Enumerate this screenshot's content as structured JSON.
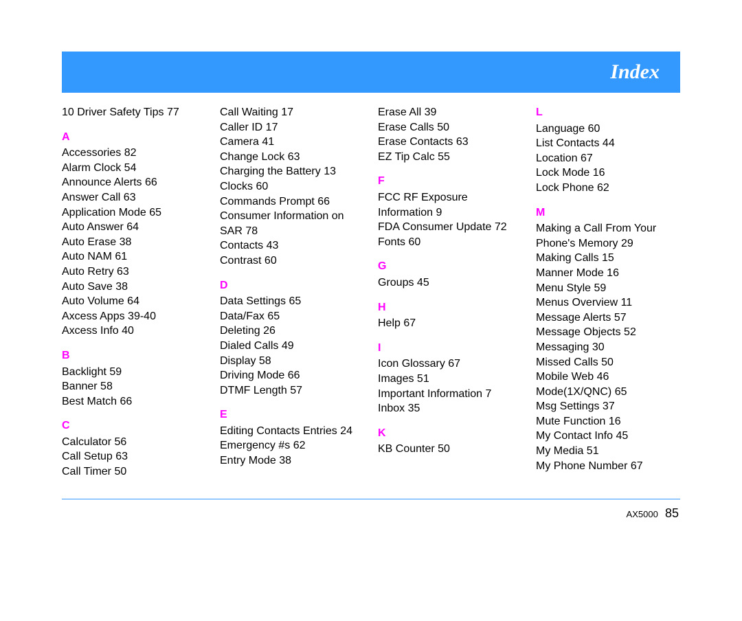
{
  "header": {
    "title": "Index"
  },
  "colors": {
    "header_bg": "#3399ff",
    "header_text": "#ffffff",
    "letter": "#ff00ff",
    "rule": "#3399ff",
    "text": "#000000"
  },
  "columns": [
    [
      {
        "type": "entry",
        "text": "10 Driver Safety Tips 77"
      },
      {
        "type": "letter",
        "text": "A"
      },
      {
        "type": "entry",
        "text": "Accessories 82"
      },
      {
        "type": "entry",
        "text": "Alarm Clock 54"
      },
      {
        "type": "entry",
        "text": "Announce Alerts 66"
      },
      {
        "type": "entry",
        "text": "Answer Call 63"
      },
      {
        "type": "entry",
        "text": "Application Mode 65"
      },
      {
        "type": "entry",
        "text": "Auto Answer 64"
      },
      {
        "type": "entry",
        "text": "Auto Erase 38"
      },
      {
        "type": "entry",
        "text": "Auto NAM 61"
      },
      {
        "type": "entry",
        "text": "Auto Retry 63"
      },
      {
        "type": "entry",
        "text": "Auto Save 38"
      },
      {
        "type": "entry",
        "text": "Auto Volume 64"
      },
      {
        "type": "entry",
        "text": "Axcess Apps 39-40"
      },
      {
        "type": "entry",
        "text": "Axcess Info 40"
      },
      {
        "type": "letter",
        "text": "B"
      },
      {
        "type": "entry",
        "text": "Backlight 59"
      },
      {
        "type": "entry",
        "text": "Banner 58"
      },
      {
        "type": "entry",
        "text": "Best Match 66"
      },
      {
        "type": "letter",
        "text": "C"
      },
      {
        "type": "entry",
        "text": "Calculator 56"
      },
      {
        "type": "entry",
        "text": "Call Setup 63"
      },
      {
        "type": "entry",
        "text": "Call Timer 50"
      }
    ],
    [
      {
        "type": "entry",
        "text": "Call Waiting 17"
      },
      {
        "type": "entry",
        "text": "Caller ID 17"
      },
      {
        "type": "entry",
        "text": "Camera 41"
      },
      {
        "type": "entry",
        "text": "Change Lock 63"
      },
      {
        "type": "entry",
        "text": "Charging the Battery 13"
      },
      {
        "type": "entry",
        "text": "Clocks 60"
      },
      {
        "type": "entry",
        "text": "Commands Prompt 66"
      },
      {
        "type": "entry",
        "text": "Consumer Information on SAR 78"
      },
      {
        "type": "entry",
        "text": "Contacts 43"
      },
      {
        "type": "entry",
        "text": "Contrast 60"
      },
      {
        "type": "letter",
        "text": "D"
      },
      {
        "type": "entry",
        "text": "Data Settings 65"
      },
      {
        "type": "entry",
        "text": "Data/Fax 65"
      },
      {
        "type": "entry",
        "text": "Deleting 26"
      },
      {
        "type": "entry",
        "text": "Dialed Calls 49"
      },
      {
        "type": "entry",
        "text": "Display 58"
      },
      {
        "type": "entry",
        "text": "Driving Mode 66"
      },
      {
        "type": "entry",
        "text": "DTMF Length 57"
      },
      {
        "type": "letter",
        "text": "E"
      },
      {
        "type": "entry",
        "text": "Editing Contacts Entries 24"
      },
      {
        "type": "entry",
        "text": "Emergency #s 62"
      },
      {
        "type": "entry",
        "text": "Entry Mode 38"
      }
    ],
    [
      {
        "type": "entry",
        "text": "Erase All 39"
      },
      {
        "type": "entry",
        "text": "Erase Calls 50"
      },
      {
        "type": "entry",
        "text": "Erase Contacts 63"
      },
      {
        "type": "entry",
        "text": "EZ Tip Calc 55"
      },
      {
        "type": "letter",
        "text": "F"
      },
      {
        "type": "entry",
        "text": "FCC RF Exposure Information 9"
      },
      {
        "type": "entry",
        "text": "FDA Consumer Update 72"
      },
      {
        "type": "entry",
        "text": "Fonts 60"
      },
      {
        "type": "letter",
        "text": "G"
      },
      {
        "type": "entry",
        "text": "Groups 45"
      },
      {
        "type": "letter",
        "text": "H"
      },
      {
        "type": "entry",
        "text": "Help 67"
      },
      {
        "type": "letter",
        "text": "I"
      },
      {
        "type": "entry",
        "text": "Icon Glossary 67"
      },
      {
        "type": "entry",
        "text": "Images 51"
      },
      {
        "type": "entry",
        "text": "Important Information 7"
      },
      {
        "type": "entry",
        "text": "Inbox 35"
      },
      {
        "type": "letter",
        "text": "K"
      },
      {
        "type": "entry",
        "text": "KB Counter 50"
      }
    ],
    [
      {
        "type": "letter",
        "text": "L"
      },
      {
        "type": "entry",
        "text": "Language 60"
      },
      {
        "type": "entry",
        "text": "List Contacts 44"
      },
      {
        "type": "entry",
        "text": "Location 67"
      },
      {
        "type": "entry",
        "text": "Lock Mode 16"
      },
      {
        "type": "entry",
        "text": "Lock Phone 62"
      },
      {
        "type": "letter",
        "text": "M"
      },
      {
        "type": "entry",
        "text": "Making a Call From Your Phone's Memory 29"
      },
      {
        "type": "entry",
        "text": "Making Calls 15"
      },
      {
        "type": "entry",
        "text": "Manner Mode 16"
      },
      {
        "type": "entry",
        "text": "Menu Style 59"
      },
      {
        "type": "entry",
        "text": "Menus Overview 11"
      },
      {
        "type": "entry",
        "text": "Message Alerts 57"
      },
      {
        "type": "entry",
        "text": "Message Objects 52"
      },
      {
        "type": "entry",
        "text": "Messaging 30"
      },
      {
        "type": "entry",
        "text": "Missed Calls 50"
      },
      {
        "type": "entry",
        "text": "Mobile Web 46"
      },
      {
        "type": "entry",
        "text": "Mode(1X/QNC) 65"
      },
      {
        "type": "entry",
        "text": "Msg Settings 37"
      },
      {
        "type": "entry",
        "text": "Mute Function 16"
      },
      {
        "type": "entry",
        "text": "My Contact Info 45"
      },
      {
        "type": "entry",
        "text": "My Media 51"
      },
      {
        "type": "entry",
        "text": "My Phone Number 67"
      }
    ]
  ],
  "footer": {
    "model": "AX5000",
    "page": "85"
  }
}
